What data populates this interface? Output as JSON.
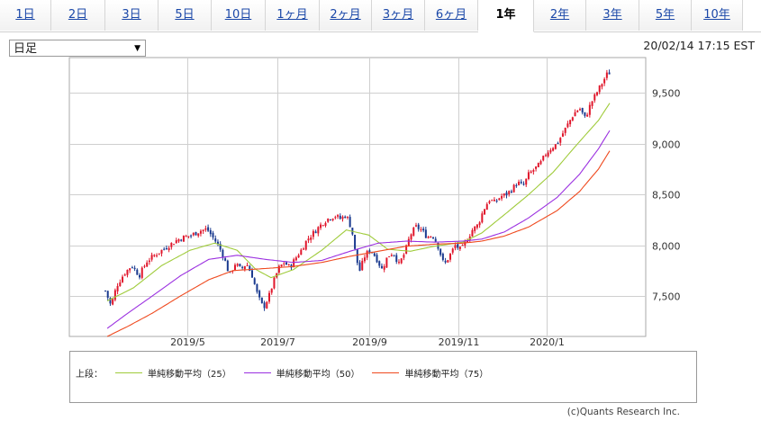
{
  "tabs": [
    {
      "label": "1日"
    },
    {
      "label": "2日"
    },
    {
      "label": "3日"
    },
    {
      "label": "5日"
    },
    {
      "label": "10日"
    },
    {
      "label": "1ヶ月"
    },
    {
      "label": "2ヶ月"
    },
    {
      "label": "3ヶ月"
    },
    {
      "label": "6ヶ月"
    },
    {
      "label": "1年",
      "active": true
    },
    {
      "label": "2年"
    },
    {
      "label": "3年"
    },
    {
      "label": "5年"
    },
    {
      "label": "10年"
    }
  ],
  "selector": {
    "value": "日足",
    "arrow": "▼"
  },
  "timestamp": "20/02/14 17:15 EST",
  "copyright": "(c)Quants Research Inc.",
  "chart_data": {
    "type": "candlestick",
    "y_ticks": [
      "9,500",
      "9,000",
      "8,500",
      "8,000",
      "7,500"
    ],
    "y_tick_values": [
      9500,
      9000,
      8500,
      8000,
      7500
    ],
    "ylim": [
      7100,
      9850
    ],
    "x_ticks": [
      "2019/5",
      "2019/7",
      "2019/9",
      "2019/11",
      "2020/1"
    ],
    "grid": true,
    "up_color": "#e0162b",
    "down_color": "#1a3a8f",
    "legend_prefix": "上段：",
    "price_path": [
      [
        0,
        7550
      ],
      [
        3,
        7400
      ],
      [
        6,
        7600
      ],
      [
        10,
        7720
      ],
      [
        14,
        7800
      ],
      [
        18,
        7700
      ],
      [
        22,
        7840
      ],
      [
        26,
        7900
      ],
      [
        30,
        7950
      ],
      [
        34,
        8000
      ],
      [
        38,
        8050
      ],
      [
        42,
        8080
      ],
      [
        46,
        8100
      ],
      [
        50,
        8140
      ],
      [
        54,
        8160
      ],
      [
        57,
        8080
      ],
      [
        60,
        8000
      ],
      [
        63,
        7880
      ],
      [
        66,
        7700
      ],
      [
        69,
        7820
      ],
      [
        72,
        7760
      ],
      [
        75,
        7820
      ],
      [
        78,
        7700
      ],
      [
        81,
        7500
      ],
      [
        84,
        7380
      ],
      [
        87,
        7500
      ],
      [
        89,
        7620
      ],
      [
        92,
        7770
      ],
      [
        95,
        7830
      ],
      [
        98,
        7780
      ],
      [
        101,
        7870
      ],
      [
        104,
        7950
      ],
      [
        107,
        8050
      ],
      [
        110,
        8110
      ],
      [
        113,
        8170
      ],
      [
        116,
        8230
      ],
      [
        119,
        8270
      ],
      [
        122,
        8290
      ],
      [
        125,
        8260
      ],
      [
        128,
        8300
      ],
      [
        131,
        8150
      ],
      [
        133,
        7900
      ],
      [
        135,
        7740
      ],
      [
        138,
        7900
      ],
      [
        141,
        7960
      ],
      [
        144,
        7870
      ],
      [
        147,
        7760
      ],
      [
        150,
        7890
      ],
      [
        153,
        7930
      ],
      [
        156,
        7810
      ],
      [
        159,
        7920
      ],
      [
        162,
        8100
      ],
      [
        165,
        8180
      ],
      [
        168,
        8150
      ],
      [
        171,
        8080
      ],
      [
        174,
        8100
      ],
      [
        177,
        7980
      ],
      [
        180,
        7800
      ],
      [
        183,
        7900
      ],
      [
        186,
        8000
      ],
      [
        189,
        7950
      ],
      [
        192,
        8050
      ],
      [
        195,
        8150
      ],
      [
        198,
        8200
      ],
      [
        201,
        8350
      ],
      [
        204,
        8450
      ],
      [
        207,
        8420
      ],
      [
        210,
        8480
      ],
      [
        213,
        8500
      ],
      [
        216,
        8550
      ],
      [
        219,
        8620
      ],
      [
        222,
        8580
      ],
      [
        225,
        8700
      ],
      [
        228,
        8750
      ],
      [
        231,
        8800
      ],
      [
        234,
        8900
      ],
      [
        237,
        8960
      ],
      [
        240,
        9000
      ],
      [
        243,
        9100
      ],
      [
        246,
        9200
      ],
      [
        249,
        9300
      ],
      [
        252,
        9350
      ],
      [
        255,
        9250
      ],
      [
        258,
        9400
      ],
      [
        261,
        9500
      ],
      [
        264,
        9600
      ],
      [
        267,
        9700
      ],
      [
        268,
        9700
      ]
    ],
    "series": [
      {
        "name": "単純移動平均（25）",
        "color": "#9fcb3a",
        "values": [
          [
            1,
            7450
          ],
          [
            15,
            7580
          ],
          [
            30,
            7800
          ],
          [
            45,
            7950
          ],
          [
            58,
            8020
          ],
          [
            70,
            7950
          ],
          [
            80,
            7760
          ],
          [
            88,
            7680
          ],
          [
            100,
            7760
          ],
          [
            115,
            7950
          ],
          [
            128,
            8150
          ],
          [
            140,
            8100
          ],
          [
            150,
            7960
          ],
          [
            162,
            7940
          ],
          [
            175,
            7990
          ],
          [
            190,
            8030
          ],
          [
            200,
            8120
          ],
          [
            212,
            8300
          ],
          [
            225,
            8500
          ],
          [
            238,
            8720
          ],
          [
            250,
            8980
          ],
          [
            262,
            9230
          ],
          [
            268,
            9400
          ]
        ]
      },
      {
        "name": "単純移動平均（50）",
        "color": "#9b30e0",
        "values": [
          [
            1,
            7180
          ],
          [
            12,
            7330
          ],
          [
            25,
            7500
          ],
          [
            40,
            7700
          ],
          [
            55,
            7860
          ],
          [
            70,
            7900
          ],
          [
            85,
            7860
          ],
          [
            100,
            7830
          ],
          [
            115,
            7850
          ],
          [
            130,
            7940
          ],
          [
            145,
            8020
          ],
          [
            160,
            8040
          ],
          [
            175,
            8030
          ],
          [
            190,
            8040
          ],
          [
            200,
            8060
          ],
          [
            212,
            8130
          ],
          [
            225,
            8270
          ],
          [
            240,
            8470
          ],
          [
            252,
            8700
          ],
          [
            262,
            8950
          ],
          [
            268,
            9130
          ]
        ]
      },
      {
        "name": "単純移動平均（75）",
        "color": "#ef4a1f",
        "values": [
          [
            1,
            7100
          ],
          [
            12,
            7200
          ],
          [
            25,
            7330
          ],
          [
            40,
            7500
          ],
          [
            55,
            7660
          ],
          [
            68,
            7750
          ],
          [
            85,
            7770
          ],
          [
            100,
            7790
          ],
          [
            115,
            7830
          ],
          [
            130,
            7890
          ],
          [
            145,
            7940
          ],
          [
            160,
            7990
          ],
          [
            175,
            8010
          ],
          [
            190,
            8020
          ],
          [
            200,
            8040
          ],
          [
            212,
            8090
          ],
          [
            225,
            8180
          ],
          [
            240,
            8340
          ],
          [
            252,
            8530
          ],
          [
            262,
            8750
          ],
          [
            268,
            8930
          ]
        ]
      }
    ]
  }
}
